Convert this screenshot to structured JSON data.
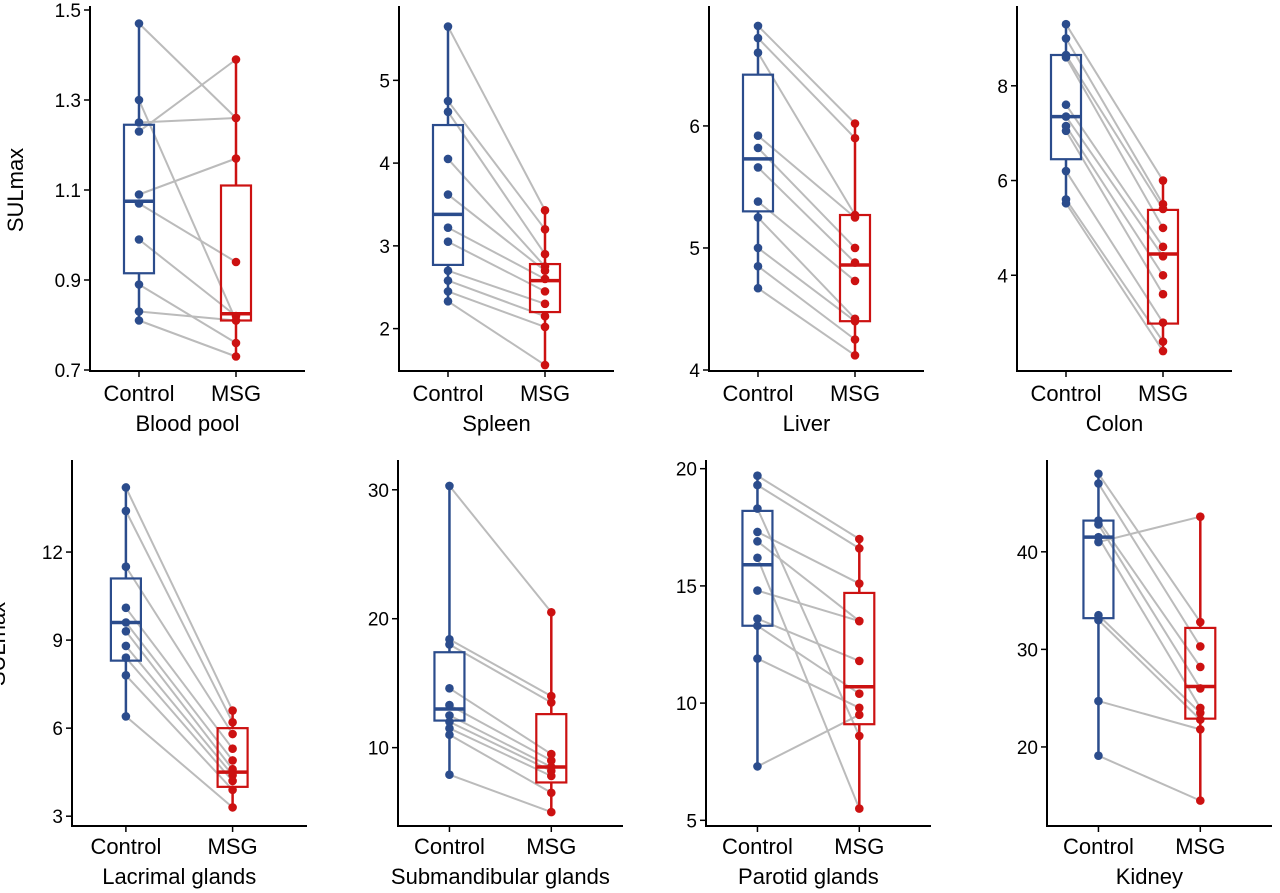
{
  "colors": {
    "control": "#2b4c8c",
    "msg": "#cc1111",
    "pair": "#bbbbbb"
  },
  "chart_data": [
    {
      "type": "box",
      "title": "Blood pool",
      "ylabel": "SULmax",
      "categories": [
        "Control",
        "MSG"
      ],
      "ylim": [
        0.7,
        1.5
      ],
      "yticks": [
        0.7,
        0.9,
        1.1,
        1.3,
        1.5
      ],
      "ytick_labels": [
        "0.7",
        "0.9",
        "1.1",
        "1.3",
        "1.5"
      ],
      "boxes": [
        {
          "whisker_low": 0.81,
          "q1": 0.915,
          "median": 1.075,
          "q3": 1.245,
          "whisker_high": 1.47
        },
        {
          "whisker_low": 0.73,
          "q1": 0.81,
          "median": 0.825,
          "q3": 1.11,
          "whisker_high": 1.39
        }
      ],
      "pairs": [
        [
          1.47,
          1.26
        ],
        [
          1.3,
          0.81
        ],
        [
          1.25,
          1.26
        ],
        [
          1.23,
          1.39
        ],
        [
          1.09,
          1.17
        ],
        [
          1.07,
          0.94
        ],
        [
          0.99,
          0.82
        ],
        [
          0.89,
          0.76
        ],
        [
          0.83,
          0.81
        ],
        [
          0.81,
          0.73
        ]
      ]
    },
    {
      "type": "box",
      "title": "Spleen",
      "ylabel": "",
      "categories": [
        "Control",
        "MSG"
      ],
      "ylim": [
        1.5,
        5.85
      ],
      "yticks": [
        2,
        3,
        4,
        5
      ],
      "ytick_labels": [
        "2",
        "3",
        "4",
        "5"
      ],
      "boxes": [
        {
          "whisker_low": 2.33,
          "q1": 2.77,
          "median": 3.38,
          "q3": 4.46,
          "whisker_high": 5.65
        },
        {
          "whisker_low": 1.56,
          "q1": 2.2,
          "median": 2.58,
          "q3": 2.78,
          "whisker_high": 3.43
        }
      ],
      "pairs": [
        [
          5.65,
          3.43
        ],
        [
          4.75,
          3.2
        ],
        [
          4.62,
          2.9
        ],
        [
          4.05,
          2.75
        ],
        [
          3.62,
          2.7
        ],
        [
          3.22,
          2.6
        ],
        [
          3.05,
          2.45
        ],
        [
          2.7,
          2.3
        ],
        [
          2.58,
          2.15
        ],
        [
          2.45,
          2.02
        ],
        [
          2.33,
          1.56
        ]
      ]
    },
    {
      "type": "box",
      "title": "Liver",
      "ylabel": "",
      "categories": [
        "Control",
        "MSG"
      ],
      "ylim": [
        4.0,
        6.95
      ],
      "yticks": [
        4,
        5,
        6
      ],
      "ytick_labels": [
        "4",
        "5",
        "6"
      ],
      "boxes": [
        {
          "whisker_low": 4.67,
          "q1": 5.3,
          "median": 5.73,
          "q3": 6.42,
          "whisker_high": 6.82
        },
        {
          "whisker_low": 4.12,
          "q1": 4.4,
          "median": 4.86,
          "q3": 5.27,
          "whisker_high": 6.02
        }
      ],
      "pairs": [
        [
          6.82,
          6.02
        ],
        [
          6.72,
          5.9
        ],
        [
          6.6,
          5.27
        ],
        [
          5.92,
          5.25
        ],
        [
          5.82,
          5.0
        ],
        [
          5.66,
          4.88
        ],
        [
          5.38,
          4.73
        ],
        [
          5.25,
          4.42
        ],
        [
          5.0,
          4.4
        ],
        [
          4.85,
          4.25
        ],
        [
          4.67,
          4.12
        ]
      ]
    },
    {
      "type": "box",
      "title": "Colon",
      "ylabel": "",
      "categories": [
        "Control",
        "MSG"
      ],
      "ylim": [
        2.0,
        9.6
      ],
      "yticks": [
        4,
        6,
        8
      ],
      "ytick_labels": [
        "4",
        "6",
        "8"
      ],
      "boxes": [
        {
          "whisker_low": 5.52,
          "q1": 6.45,
          "median": 7.35,
          "q3": 8.65,
          "whisker_high": 9.3
        },
        {
          "whisker_low": 2.4,
          "q1": 2.98,
          "median": 4.45,
          "q3": 5.38,
          "whisker_high": 6.0
        }
      ],
      "pairs": [
        [
          9.3,
          6.0
        ],
        [
          9.0,
          5.5
        ],
        [
          8.65,
          5.4
        ],
        [
          8.6,
          5.0
        ],
        [
          7.6,
          4.6
        ],
        [
          7.35,
          4.4
        ],
        [
          7.15,
          4.0
        ],
        [
          7.05,
          3.6
        ],
        [
          6.2,
          3.0
        ],
        [
          5.6,
          2.6
        ],
        [
          5.52,
          2.4
        ]
      ]
    },
    {
      "type": "box",
      "title": "Lacrimal glands",
      "ylabel": "SULmax",
      "categories": [
        "Control",
        "MSG"
      ],
      "ylim": [
        2.7,
        15.0
      ],
      "yticks": [
        3,
        6,
        9,
        12
      ],
      "ytick_labels": [
        "3",
        "6",
        "9",
        "12"
      ],
      "boxes": [
        {
          "whisker_low": 6.4,
          "q1": 8.3,
          "median": 9.6,
          "q3": 11.1,
          "whisker_high": 14.2
        },
        {
          "whisker_low": 3.3,
          "q1": 4.0,
          "median": 4.5,
          "q3": 6.0,
          "whisker_high": 6.6
        }
      ],
      "pairs": [
        [
          14.2,
          6.6
        ],
        [
          13.4,
          6.2
        ],
        [
          11.5,
          5.8
        ],
        [
          10.1,
          5.3
        ],
        [
          9.6,
          4.9
        ],
        [
          9.3,
          4.6
        ],
        [
          8.8,
          4.4
        ],
        [
          8.4,
          4.2
        ],
        [
          7.8,
          3.9
        ],
        [
          6.4,
          3.3
        ]
      ]
    },
    {
      "type": "box",
      "title": "Submandibular glands",
      "ylabel": "",
      "categories": [
        "Control",
        "MSG"
      ],
      "ylim": [
        4.0,
        32.0
      ],
      "yticks": [
        10,
        20,
        30
      ],
      "ytick_labels": [
        "10",
        "20",
        "30"
      ],
      "boxes": [
        {
          "whisker_low": 7.9,
          "q1": 12.1,
          "median": 13.0,
          "q3": 17.4,
          "whisker_high": 30.3
        },
        {
          "whisker_low": 5.0,
          "q1": 7.3,
          "median": 8.5,
          "q3": 12.6,
          "whisker_high": 20.5
        }
      ],
      "pairs": [
        [
          30.3,
          20.5
        ],
        [
          18.4,
          14.0
        ],
        [
          18.0,
          13.5
        ],
        [
          14.6,
          9.5
        ],
        [
          13.3,
          9.0
        ],
        [
          12.5,
          8.5
        ],
        [
          12.0,
          8.2
        ],
        [
          11.5,
          7.8
        ],
        [
          11.0,
          6.5
        ],
        [
          7.9,
          5.0
        ]
      ]
    },
    {
      "type": "box",
      "title": "Parotid glands",
      "ylabel": "",
      "categories": [
        "Control",
        "MSG"
      ],
      "ylim": [
        4.8,
        20.2
      ],
      "yticks": [
        5,
        10,
        15,
        20
      ],
      "ytick_labels": [
        "5",
        "10",
        "15",
        "20"
      ],
      "boxes": [
        {
          "whisker_low": 7.3,
          "q1": 13.3,
          "median": 15.9,
          "q3": 18.2,
          "whisker_high": 19.7
        },
        {
          "whisker_low": 5.5,
          "q1": 9.1,
          "median": 10.7,
          "q3": 14.7,
          "whisker_high": 17.0
        }
      ],
      "pairs": [
        [
          19.7,
          17.0
        ],
        [
          19.3,
          16.6
        ],
        [
          17.3,
          15.1
        ],
        [
          16.9,
          13.5
        ],
        [
          14.8,
          13.5
        ],
        [
          13.6,
          11.8
        ],
        [
          13.3,
          10.4
        ],
        [
          11.9,
          9.8
        ],
        [
          7.3,
          9.5
        ],
        [
          18.3,
          8.6
        ],
        [
          16.2,
          5.5
        ]
      ]
    },
    {
      "type": "box",
      "title": "Kidney",
      "ylabel": "",
      "categories": [
        "Control",
        "MSG"
      ],
      "ylim": [
        12.0,
        49.0
      ],
      "yticks": [
        20,
        30,
        40
      ],
      "ytick_labels": [
        "20",
        "30",
        "40"
      ],
      "boxes": [
        {
          "whisker_low": 19.1,
          "q1": 33.2,
          "median": 41.5,
          "q3": 43.2,
          "whisker_high": 48.0
        },
        {
          "whisker_low": 14.5,
          "q1": 22.9,
          "median": 26.2,
          "q3": 32.2,
          "whisker_high": 43.6
        }
      ],
      "pairs": [
        [
          48.0,
          32.8
        ],
        [
          47.0,
          30.3
        ],
        [
          43.2,
          28.2
        ],
        [
          42.8,
          26.0
        ],
        [
          41.5,
          24.0
        ],
        [
          41.0,
          43.6
        ],
        [
          33.5,
          23.5
        ],
        [
          33.0,
          22.8
        ],
        [
          24.7,
          21.8
        ],
        [
          19.1,
          14.5
        ]
      ]
    }
  ]
}
